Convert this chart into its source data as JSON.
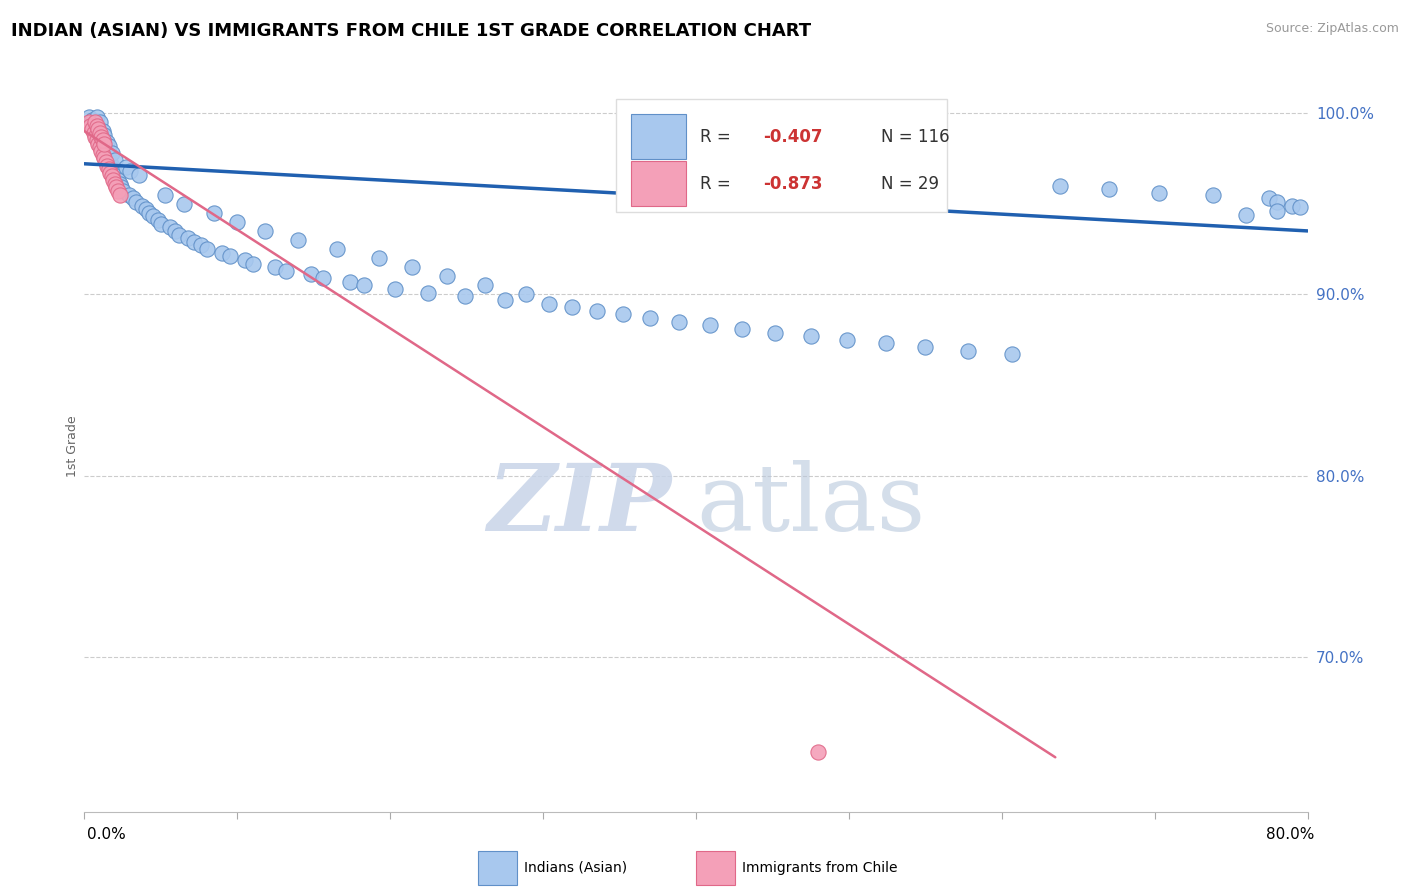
{
  "title": "INDIAN (ASIAN) VS IMMIGRANTS FROM CHILE 1ST GRADE CORRELATION CHART",
  "source": "Source: ZipAtlas.com",
  "ylabel": "1st Grade",
  "ytick_labels": [
    "70.0%",
    "80.0%",
    "90.0%",
    "100.0%"
  ],
  "ytick_values": [
    0.7,
    0.8,
    0.9,
    1.0
  ],
  "xlim": [
    0.0,
    0.8
  ],
  "ylim": [
    0.615,
    1.018
  ],
  "color_blue": "#A8C8EE",
  "color_pink": "#F4A0B8",
  "color_blue_edge": "#6090C8",
  "color_pink_edge": "#E06888",
  "color_blue_line": "#2060B0",
  "color_pink_line": "#E06888",
  "blue_scatter_x": [
    0.003,
    0.005,
    0.006,
    0.007,
    0.008,
    0.008,
    0.009,
    0.01,
    0.01,
    0.011,
    0.012,
    0.012,
    0.013,
    0.013,
    0.014,
    0.015,
    0.015,
    0.016,
    0.016,
    0.017,
    0.018,
    0.018,
    0.019,
    0.02,
    0.02,
    0.021,
    0.022,
    0.023,
    0.024,
    0.025,
    0.027,
    0.029,
    0.03,
    0.032,
    0.034,
    0.036,
    0.038,
    0.04,
    0.042,
    0.045,
    0.048,
    0.05,
    0.053,
    0.056,
    0.059,
    0.062,
    0.065,
    0.068,
    0.072,
    0.076,
    0.08,
    0.085,
    0.09,
    0.095,
    0.1,
    0.105,
    0.11,
    0.118,
    0.125,
    0.132,
    0.14,
    0.148,
    0.156,
    0.165,
    0.174,
    0.183,
    0.193,
    0.203,
    0.214,
    0.225,
    0.237,
    0.249,
    0.262,
    0.275,
    0.289,
    0.304,
    0.319,
    0.335,
    0.352,
    0.37,
    0.389,
    0.409,
    0.43,
    0.452,
    0.475,
    0.499,
    0.524,
    0.55,
    0.578,
    0.607,
    0.638,
    0.67,
    0.703,
    0.738,
    0.775,
    0.78,
    0.79,
    0.795,
    0.78,
    0.76
  ],
  "blue_scatter_y": [
    0.998,
    0.996,
    0.994,
    0.993,
    0.991,
    0.998,
    0.989,
    0.987,
    0.995,
    0.985,
    0.983,
    0.99,
    0.981,
    0.988,
    0.979,
    0.977,
    0.984,
    0.975,
    0.982,
    0.973,
    0.971,
    0.978,
    0.969,
    0.967,
    0.974,
    0.965,
    0.963,
    0.961,
    0.959,
    0.957,
    0.97,
    0.955,
    0.968,
    0.953,
    0.951,
    0.966,
    0.949,
    0.947,
    0.945,
    0.943,
    0.941,
    0.939,
    0.955,
    0.937,
    0.935,
    0.933,
    0.95,
    0.931,
    0.929,
    0.927,
    0.925,
    0.945,
    0.923,
    0.921,
    0.94,
    0.919,
    0.917,
    0.935,
    0.915,
    0.913,
    0.93,
    0.911,
    0.909,
    0.925,
    0.907,
    0.905,
    0.92,
    0.903,
    0.915,
    0.901,
    0.91,
    0.899,
    0.905,
    0.897,
    0.9,
    0.895,
    0.893,
    0.891,
    0.889,
    0.887,
    0.885,
    0.883,
    0.881,
    0.879,
    0.877,
    0.875,
    0.873,
    0.871,
    0.869,
    0.867,
    0.96,
    0.958,
    0.956,
    0.955,
    0.953,
    0.951,
    0.949,
    0.948,
    0.946,
    0.944
  ],
  "pink_scatter_x": [
    0.003,
    0.004,
    0.005,
    0.006,
    0.007,
    0.007,
    0.008,
    0.008,
    0.009,
    0.009,
    0.01,
    0.01,
    0.011,
    0.011,
    0.012,
    0.012,
    0.013,
    0.013,
    0.014,
    0.015,
    0.016,
    0.017,
    0.018,
    0.019,
    0.02,
    0.021,
    0.022,
    0.023,
    0.48
  ],
  "pink_scatter_y": [
    0.995,
    0.993,
    0.991,
    0.989,
    0.987,
    0.995,
    0.985,
    0.993,
    0.983,
    0.991,
    0.981,
    0.989,
    0.979,
    0.987,
    0.977,
    0.985,
    0.975,
    0.983,
    0.973,
    0.971,
    0.969,
    0.967,
    0.965,
    0.963,
    0.961,
    0.959,
    0.957,
    0.955,
    0.648
  ],
  "blue_line_x": [
    0.0,
    0.8
  ],
  "blue_line_y": [
    0.972,
    0.935
  ],
  "pink_line_x": [
    0.0,
    0.635
  ],
  "pink_line_y": [
    0.99,
    0.645
  ],
  "grid_color": "#CCCCCC",
  "ytick_color": "#4472C4",
  "title_fontsize": 13,
  "watermark_zip_color": "#C8D4E8",
  "watermark_atlas_color": "#B8C8DC"
}
